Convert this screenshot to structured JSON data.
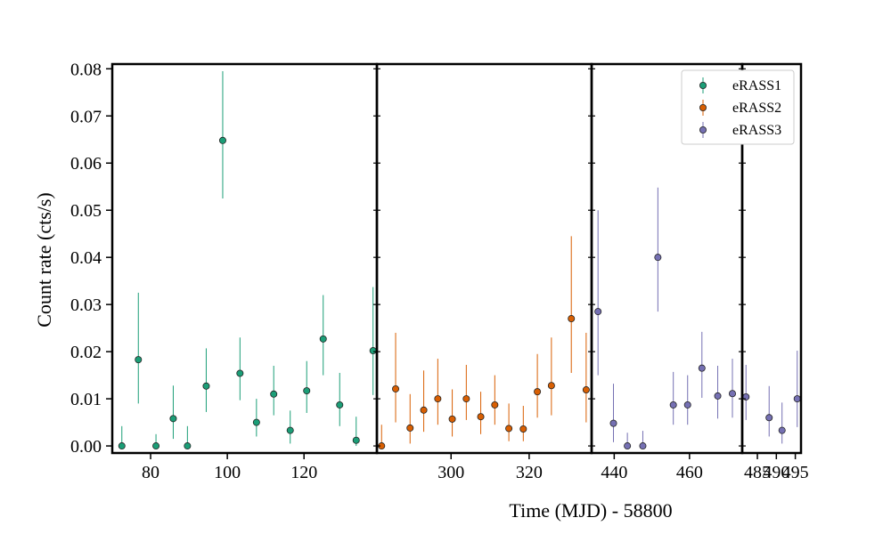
{
  "chart_data": {
    "type": "scatter",
    "ylabel": "Count rate (cts/s)",
    "xlabel": "Time (MJD) - 58800",
    "ylim": [
      -0.0015,
      0.081
    ],
    "yticks": [
      0.0,
      0.01,
      0.02,
      0.03,
      0.04,
      0.05,
      0.06,
      0.07,
      0.08
    ],
    "ytick_labels": [
      "0.00",
      "0.01",
      "0.02",
      "0.03",
      "0.04",
      "0.05",
      "0.06",
      "0.07",
      "0.08"
    ],
    "legend_position": "top-right",
    "panels": [
      {
        "xlim": [
          70,
          139
        ],
        "xticks": [
          80,
          100,
          120
        ],
        "xtick_labels": [
          "80",
          "100",
          "120"
        ]
      },
      {
        "xlim": [
          281,
          336
        ],
        "xticks": [
          300,
          320
        ],
        "xtick_labels": [
          "300",
          "320"
        ]
      },
      {
        "xlim": [
          434,
          474
        ],
        "xticks": [
          440,
          460
        ],
        "xtick_labels": [
          "440",
          "460"
        ]
      },
      {
        "xlim": [
          481,
          496.5
        ],
        "xticks": [
          485,
          490,
          495
        ],
        "xtick_labels": [
          "485",
          "490",
          "495"
        ]
      }
    ],
    "series": [
      {
        "name": "eRASS1",
        "color": "#1b9e77",
        "points": [
          {
            "x": 72.5,
            "y": 0.0,
            "lo": 0.0,
            "hi": 0.0042
          },
          {
            "x": 76.8,
            "y": 0.0183,
            "lo": 0.009,
            "hi": 0.0325
          },
          {
            "x": 81.4,
            "y": 0.0,
            "lo": 0.0,
            "hi": 0.0025
          },
          {
            "x": 85.9,
            "y": 0.0058,
            "lo": 0.0015,
            "hi": 0.0128
          },
          {
            "x": 89.6,
            "y": 0.0,
            "lo": 0.0,
            "hi": 0.0042
          },
          {
            "x": 94.5,
            "y": 0.0127,
            "lo": 0.0072,
            "hi": 0.0207
          },
          {
            "x": 98.8,
            "y": 0.0648,
            "lo": 0.0525,
            "hi": 0.0795
          },
          {
            "x": 103.3,
            "y": 0.0154,
            "lo": 0.0097,
            "hi": 0.023
          },
          {
            "x": 107.6,
            "y": 0.005,
            "lo": 0.002,
            "hi": 0.01
          },
          {
            "x": 112.1,
            "y": 0.011,
            "lo": 0.0065,
            "hi": 0.017
          },
          {
            "x": 116.4,
            "y": 0.0033,
            "lo": 0.0005,
            "hi": 0.0075
          },
          {
            "x": 120.7,
            "y": 0.0117,
            "lo": 0.007,
            "hi": 0.018
          },
          {
            "x": 125.0,
            "y": 0.0227,
            "lo": 0.015,
            "hi": 0.032
          },
          {
            "x": 129.3,
            "y": 0.0087,
            "lo": 0.0042,
            "hi": 0.0155
          },
          {
            "x": 133.6,
            "y": 0.0012,
            "lo": 0.0,
            "hi": 0.0062
          },
          {
            "x": 138.0,
            "y": 0.0202,
            "lo": 0.0108,
            "hi": 0.0337
          }
        ]
      },
      {
        "name": "eRASS2",
        "color": "#d95f02",
        "points": [
          {
            "x": 282.2,
            "y": 0.0,
            "lo": 0.0,
            "hi": 0.0045
          },
          {
            "x": 285.8,
            "y": 0.0121,
            "lo": 0.005,
            "hi": 0.024
          },
          {
            "x": 289.5,
            "y": 0.0038,
            "lo": 0.0005,
            "hi": 0.011
          },
          {
            "x": 293.0,
            "y": 0.0076,
            "lo": 0.003,
            "hi": 0.016
          },
          {
            "x": 296.6,
            "y": 0.01,
            "lo": 0.0045,
            "hi": 0.0185
          },
          {
            "x": 300.3,
            "y": 0.0057,
            "lo": 0.002,
            "hi": 0.012
          },
          {
            "x": 303.9,
            "y": 0.01,
            "lo": 0.0055,
            "hi": 0.0172
          },
          {
            "x": 307.6,
            "y": 0.0062,
            "lo": 0.0025,
            "hi": 0.0115
          },
          {
            "x": 311.2,
            "y": 0.0087,
            "lo": 0.0045,
            "hi": 0.015
          },
          {
            "x": 314.8,
            "y": 0.0037,
            "lo": 0.001,
            "hi": 0.009
          },
          {
            "x": 318.5,
            "y": 0.0036,
            "lo": 0.001,
            "hi": 0.0085
          },
          {
            "x": 322.1,
            "y": 0.0115,
            "lo": 0.006,
            "hi": 0.0195
          },
          {
            "x": 325.7,
            "y": 0.0128,
            "lo": 0.0065,
            "hi": 0.023
          },
          {
            "x": 330.8,
            "y": 0.027,
            "lo": 0.0155,
            "hi": 0.0445
          },
          {
            "x": 334.6,
            "y": 0.0119,
            "lo": 0.005,
            "hi": 0.024
          }
        ]
      },
      {
        "name": "eRASS3",
        "color": "#7570b3",
        "points": [
          {
            "x": 435.7,
            "y": 0.0285,
            "lo": 0.015,
            "hi": 0.05
          },
          {
            "x": 439.8,
            "y": 0.0048,
            "lo": 0.0008,
            "hi": 0.0132
          },
          {
            "x": 443.5,
            "y": 0.0,
            "lo": 0.0,
            "hi": 0.0028
          },
          {
            "x": 447.6,
            "y": 0.0,
            "lo": 0.0,
            "hi": 0.0032
          },
          {
            "x": 451.6,
            "y": 0.04,
            "lo": 0.0285,
            "hi": 0.0548
          },
          {
            "x": 455.7,
            "y": 0.0087,
            "lo": 0.0045,
            "hi": 0.0157
          },
          {
            "x": 459.5,
            "y": 0.0087,
            "lo": 0.0045,
            "hi": 0.015
          },
          {
            "x": 463.3,
            "y": 0.0165,
            "lo": 0.0102,
            "hi": 0.0242
          },
          {
            "x": 467.5,
            "y": 0.0106,
            "lo": 0.0058,
            "hi": 0.017
          },
          {
            "x": 471.4,
            "y": 0.0111,
            "lo": 0.006,
            "hi": 0.0185
          },
          {
            "x": 482.0,
            "y": 0.0104,
            "lo": 0.0055,
            "hi": 0.0172
          },
          {
            "x": 488.1,
            "y": 0.006,
            "lo": 0.002,
            "hi": 0.0127
          },
          {
            "x": 491.5,
            "y": 0.0033,
            "lo": 0.0005,
            "hi": 0.0092
          },
          {
            "x": 495.5,
            "y": 0.01,
            "lo": 0.004,
            "hi": 0.0202
          }
        ]
      }
    ]
  }
}
